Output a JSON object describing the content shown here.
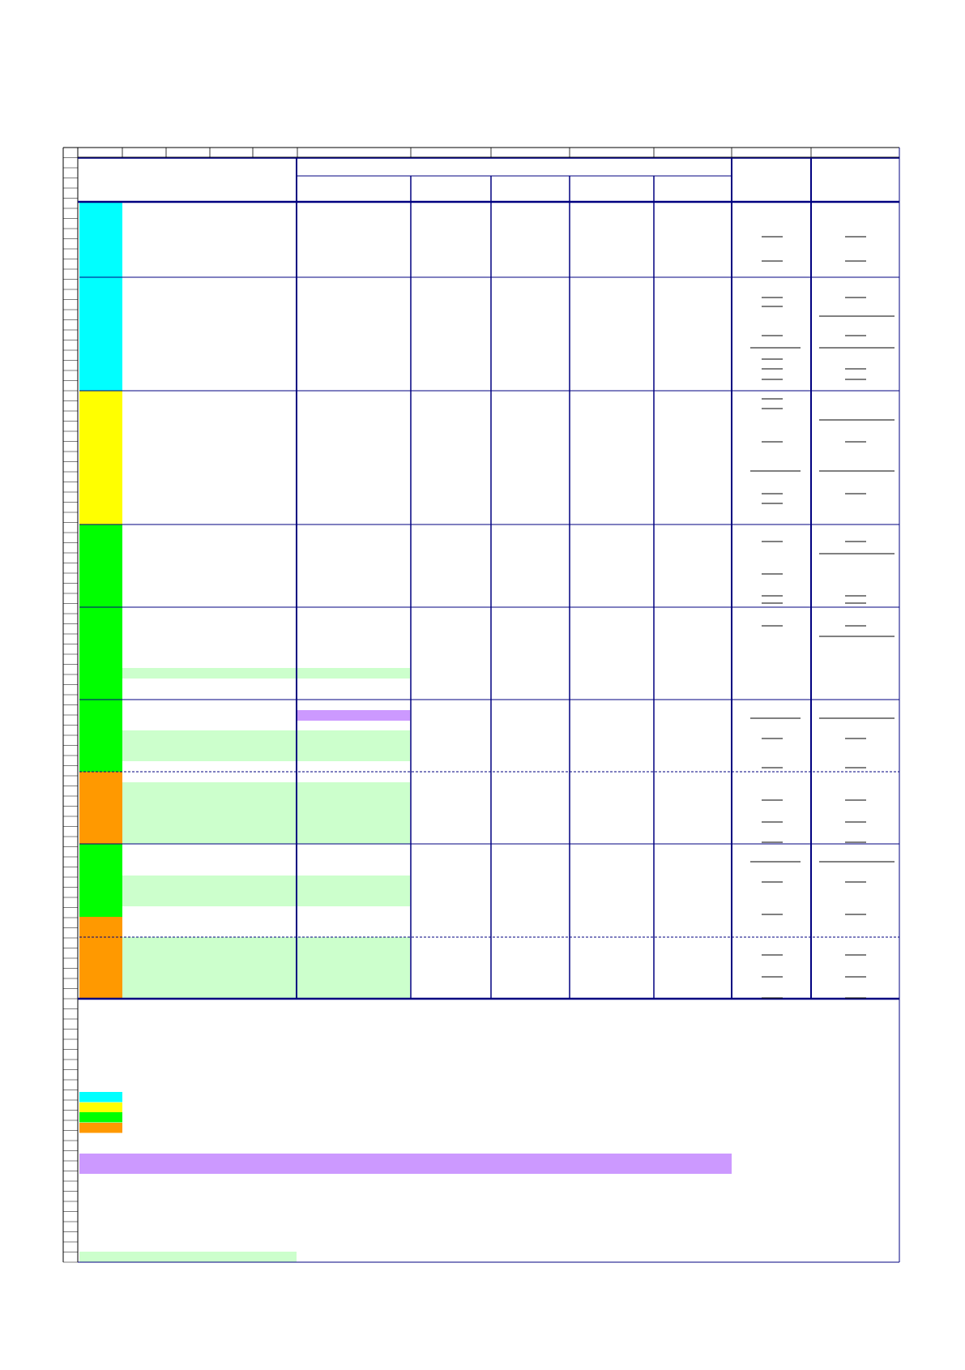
{
  "document": {
    "title": "",
    "note": ""
  },
  "colors": {
    "grid_line": "#000000",
    "table_border": "#000080",
    "category_cyan": "#00FFFF",
    "category_yellow": "#FFFF00",
    "category_green": "#00FF00",
    "category_orange": "#FF9900",
    "highlight_light_green": "#CCFFCC",
    "highlight_purple": "#CC99FF"
  },
  "table": {
    "header": {
      "main_label": "",
      "group_label": "",
      "sub_columns": [
        "",
        "",
        "",
        "",
        ""
      ],
      "col_a_label": "",
      "col_b_label": ""
    },
    "sections": [
      {
        "category": "cyan"
      },
      {
        "category": "cyan"
      },
      {
        "category": "yellow"
      },
      {
        "category": "green"
      },
      {
        "category": "green"
      },
      {
        "category": "green"
      },
      {
        "category": "orange"
      },
      {
        "category": "green"
      },
      {
        "category": "orange"
      }
    ]
  },
  "legend": [
    {
      "color": "cyan",
      "label": ""
    },
    {
      "color": "yellow",
      "label": ""
    },
    {
      "color": "green",
      "label": ""
    },
    {
      "color": "orange",
      "label": ""
    }
  ]
}
